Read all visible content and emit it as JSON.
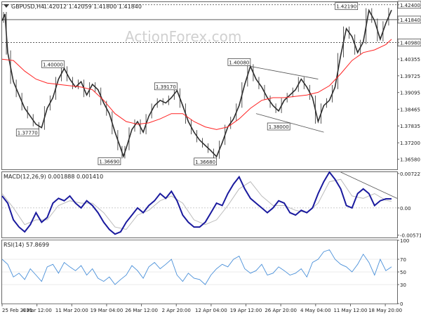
{
  "header": {
    "symbol_text": "GBPUSD,H4",
    "ohlc_text": "1.42012 1.42059 1.41800 1.41840"
  },
  "watermark": "ActionForex.com",
  "colors": {
    "price": "#2d2d2d",
    "ma": "#ff2222",
    "macd": "#1a1a9e",
    "signal": "#bbbbbb",
    "rsi": "#4a90d9",
    "grid": "#d8d8d8",
    "level_line": "#444444",
    "trendline": "#555555",
    "axis_tag_fill": "#ffffff"
  },
  "chart_data": [
    {
      "type": "line",
      "panel": "price",
      "title": "GBPUSD,H4 1.42012 1.42059 1.41800 1.41840",
      "ylim": [
        1.362,
        1.425
      ],
      "y_ticks": [
        "1.42400",
        "1.41840",
        "1.40980",
        "1.40355",
        "1.39725",
        "1.39095",
        "1.38465",
        "1.37835",
        "1.37200",
        "1.36580"
      ],
      "x_ticks": [
        "25 Feb 2021",
        "4 Mar 12:00",
        "11 Mar 20:00",
        "19 Mar 04:00",
        "26 Mar 12:00",
        "2 Apr 20:00",
        "12 Apr 04:00",
        "19 Apr 12:00",
        "26 Apr 20:00",
        "4 May 04:00",
        "11 May 12:00",
        "18 May 20:00"
      ],
      "x_range": [
        0,
        140
      ],
      "series": [
        {
          "role": "price",
          "x": [
            0,
            1,
            2,
            4,
            6,
            8,
            10,
            12,
            14,
            16,
            18,
            20,
            22,
            24,
            26,
            28,
            30,
            32,
            34,
            36,
            38,
            40,
            42,
            43,
            44,
            46,
            48,
            50,
            52,
            54,
            56,
            58,
            60,
            62,
            64,
            66,
            68,
            70,
            72,
            74,
            76,
            78,
            80,
            82,
            84,
            86,
            88,
            90,
            92,
            94,
            96,
            98,
            100,
            102,
            104,
            106,
            108,
            110,
            112,
            114,
            116,
            118,
            120,
            122,
            124,
            126,
            128,
            130,
            132,
            134,
            136,
            138
          ],
          "values": [
            1.418,
            1.4205,
            1.406,
            1.395,
            1.39,
            1.385,
            1.382,
            1.379,
            1.3777,
            1.385,
            1.389,
            1.396,
            1.4,
            1.396,
            1.393,
            1.395,
            1.39,
            1.394,
            1.392,
            1.387,
            1.383,
            1.376,
            1.37,
            1.3669,
            1.37,
            1.377,
            1.38,
            1.376,
            1.382,
            1.386,
            1.388,
            1.387,
            1.389,
            1.3917,
            1.386,
            1.38,
            1.376,
            1.373,
            1.371,
            1.369,
            1.3668,
            1.372,
            1.378,
            1.381,
            1.386,
            1.394,
            1.4008,
            1.396,
            1.393,
            1.389,
            1.386,
            1.384,
            1.388,
            1.39,
            1.392,
            1.396,
            1.393,
            1.389,
            1.38,
            1.386,
            1.388,
            1.393,
            1.405,
            1.415,
            1.412,
            1.406,
            1.41,
            1.4219,
            1.418,
            1.411,
            1.417,
            1.422
          ]
        },
        {
          "role": "moving_average",
          "x": [
            0,
            4,
            8,
            12,
            16,
            20,
            24,
            28,
            32,
            36,
            40,
            44,
            48,
            52,
            56,
            60,
            64,
            68,
            72,
            76,
            80,
            84,
            88,
            92,
            96,
            100,
            104,
            108,
            112,
            116,
            120,
            124,
            128,
            132,
            136,
            138
          ],
          "values": [
            1.4035,
            1.403,
            1.399,
            1.396,
            1.3945,
            1.394,
            1.3935,
            1.393,
            1.392,
            1.388,
            1.383,
            1.38,
            1.379,
            1.3795,
            1.381,
            1.383,
            1.383,
            1.38,
            1.378,
            1.377,
            1.378,
            1.381,
            1.385,
            1.388,
            1.389,
            1.389,
            1.3895,
            1.39,
            1.391,
            1.3935,
            1.398,
            1.403,
            1.406,
            1.407,
            1.409,
            1.411
          ]
        }
      ],
      "horizontal_levels": [
        "1.42400",
        "1.41840",
        "1.40980"
      ],
      "annotations": [
        "1.40000",
        "1.37770",
        "1.39170",
        "1.36690",
        "1.36680",
        "1.40080",
        "1.38000",
        "1.42190"
      ],
      "trendlines": [
        {
          "from": [
            88,
            1.4008
          ],
          "to": [
            112,
            1.396
          ]
        },
        {
          "from": [
            90,
            1.383
          ],
          "to": [
            114,
            1.376
          ]
        }
      ]
    },
    {
      "type": "line",
      "panel": "macd",
      "title": "MACD(12,26,9) 0.001888 0.001410",
      "ylim": [
        -0.0062,
        0.0075
      ],
      "y_ticks": [
        "0.007227",
        "0.00",
        "-0.005714"
      ],
      "series": [
        {
          "role": "macd",
          "x": [
            0,
            2,
            4,
            6,
            8,
            10,
            12,
            14,
            16,
            18,
            20,
            22,
            24,
            26,
            28,
            30,
            32,
            34,
            36,
            38,
            40,
            42,
            44,
            46,
            48,
            50,
            52,
            54,
            56,
            58,
            60,
            62,
            64,
            66,
            68,
            70,
            72,
            74,
            76,
            78,
            80,
            82,
            84,
            86,
            88,
            90,
            92,
            94,
            96,
            98,
            100,
            102,
            104,
            106,
            108,
            110,
            112,
            114,
            116,
            118,
            120,
            122,
            124,
            126,
            128,
            130,
            132,
            134,
            136,
            138
          ],
          "values": [
            0.0025,
            0.001,
            -0.0025,
            -0.004,
            -0.005,
            -0.0035,
            -0.001,
            -0.003,
            -0.002,
            0.001,
            0.002,
            0.0015,
            0.0025,
            0.001,
            0.0,
            0.0015,
            0.0005,
            -0.001,
            -0.003,
            -0.0045,
            -0.0055,
            -0.005,
            -0.003,
            -0.0015,
            0.0,
            -0.001,
            0.0005,
            0.0015,
            0.003,
            0.002,
            0.0035,
            0.0015,
            -0.0015,
            -0.003,
            -0.004,
            -0.004,
            -0.003,
            -0.001,
            0.001,
            0.0005,
            0.003,
            0.005,
            0.0065,
            0.004,
            0.002,
            0.001,
            0.0,
            -0.001,
            0.0,
            0.0015,
            0.001,
            -0.001,
            -0.0015,
            -0.0005,
            -0.001,
            0.0,
            0.003,
            0.0055,
            0.0075,
            0.006,
            0.004,
            0.0005,
            0.0,
            0.003,
            0.004,
            0.003,
            0.0005,
            0.0015,
            0.0019,
            0.0019
          ]
        },
        {
          "role": "signal",
          "x": [
            0,
            4,
            8,
            12,
            16,
            20,
            24,
            28,
            32,
            36,
            40,
            44,
            48,
            52,
            56,
            60,
            64,
            68,
            72,
            76,
            80,
            84,
            88,
            92,
            96,
            100,
            104,
            108,
            112,
            116,
            120,
            124,
            128,
            132,
            136,
            138
          ],
          "values": [
            0.003,
            0.0,
            -0.0035,
            -0.0025,
            -0.0025,
            0.0005,
            0.0015,
            0.001,
            0.001,
            -0.001,
            -0.004,
            -0.0045,
            -0.0015,
            -0.0005,
            0.0015,
            0.0025,
            0.001,
            -0.0025,
            -0.0035,
            -0.0025,
            0.0005,
            0.004,
            0.0055,
            0.0025,
            0.0005,
            0.0005,
            -0.0005,
            -0.001,
            0.001,
            0.0055,
            0.006,
            0.0025,
            0.002,
            0.003,
            0.0016,
            0.0014
          ]
        }
      ],
      "trendlines": [
        {
          "from": [
            120,
            0.0075
          ],
          "to": [
            140,
            0.002
          ]
        }
      ]
    },
    {
      "type": "line",
      "panel": "rsi",
      "title": "RSI(14) 57.8699",
      "ylim": [
        0,
        100
      ],
      "y_ticks": [
        "100",
        "70",
        "50",
        "30",
        "0"
      ],
      "series": [
        {
          "role": "rsi",
          "x": [
            0,
            2,
            4,
            6,
            8,
            10,
            12,
            14,
            16,
            18,
            20,
            22,
            24,
            26,
            28,
            30,
            32,
            34,
            36,
            38,
            40,
            42,
            44,
            46,
            48,
            50,
            52,
            54,
            56,
            58,
            60,
            62,
            64,
            66,
            68,
            70,
            72,
            74,
            76,
            78,
            80,
            82,
            84,
            86,
            88,
            90,
            92,
            94,
            96,
            98,
            100,
            102,
            104,
            106,
            108,
            110,
            112,
            114,
            116,
            118,
            120,
            122,
            124,
            126,
            128,
            130,
            132,
            134,
            136,
            138
          ],
          "values": [
            70,
            62,
            42,
            48,
            38,
            55,
            45,
            35,
            58,
            62,
            48,
            65,
            58,
            52,
            60,
            45,
            55,
            40,
            35,
            42,
            30,
            38,
            45,
            60,
            52,
            40,
            58,
            65,
            55,
            62,
            70,
            45,
            35,
            48,
            40,
            38,
            30,
            45,
            55,
            62,
            58,
            70,
            75,
            55,
            48,
            52,
            62,
            45,
            48,
            58,
            52,
            45,
            48,
            55,
            42,
            65,
            70,
            82,
            85,
            70,
            62,
            58,
            50,
            62,
            78,
            65,
            45,
            70,
            52,
            58
          ]
        }
      ]
    }
  ]
}
